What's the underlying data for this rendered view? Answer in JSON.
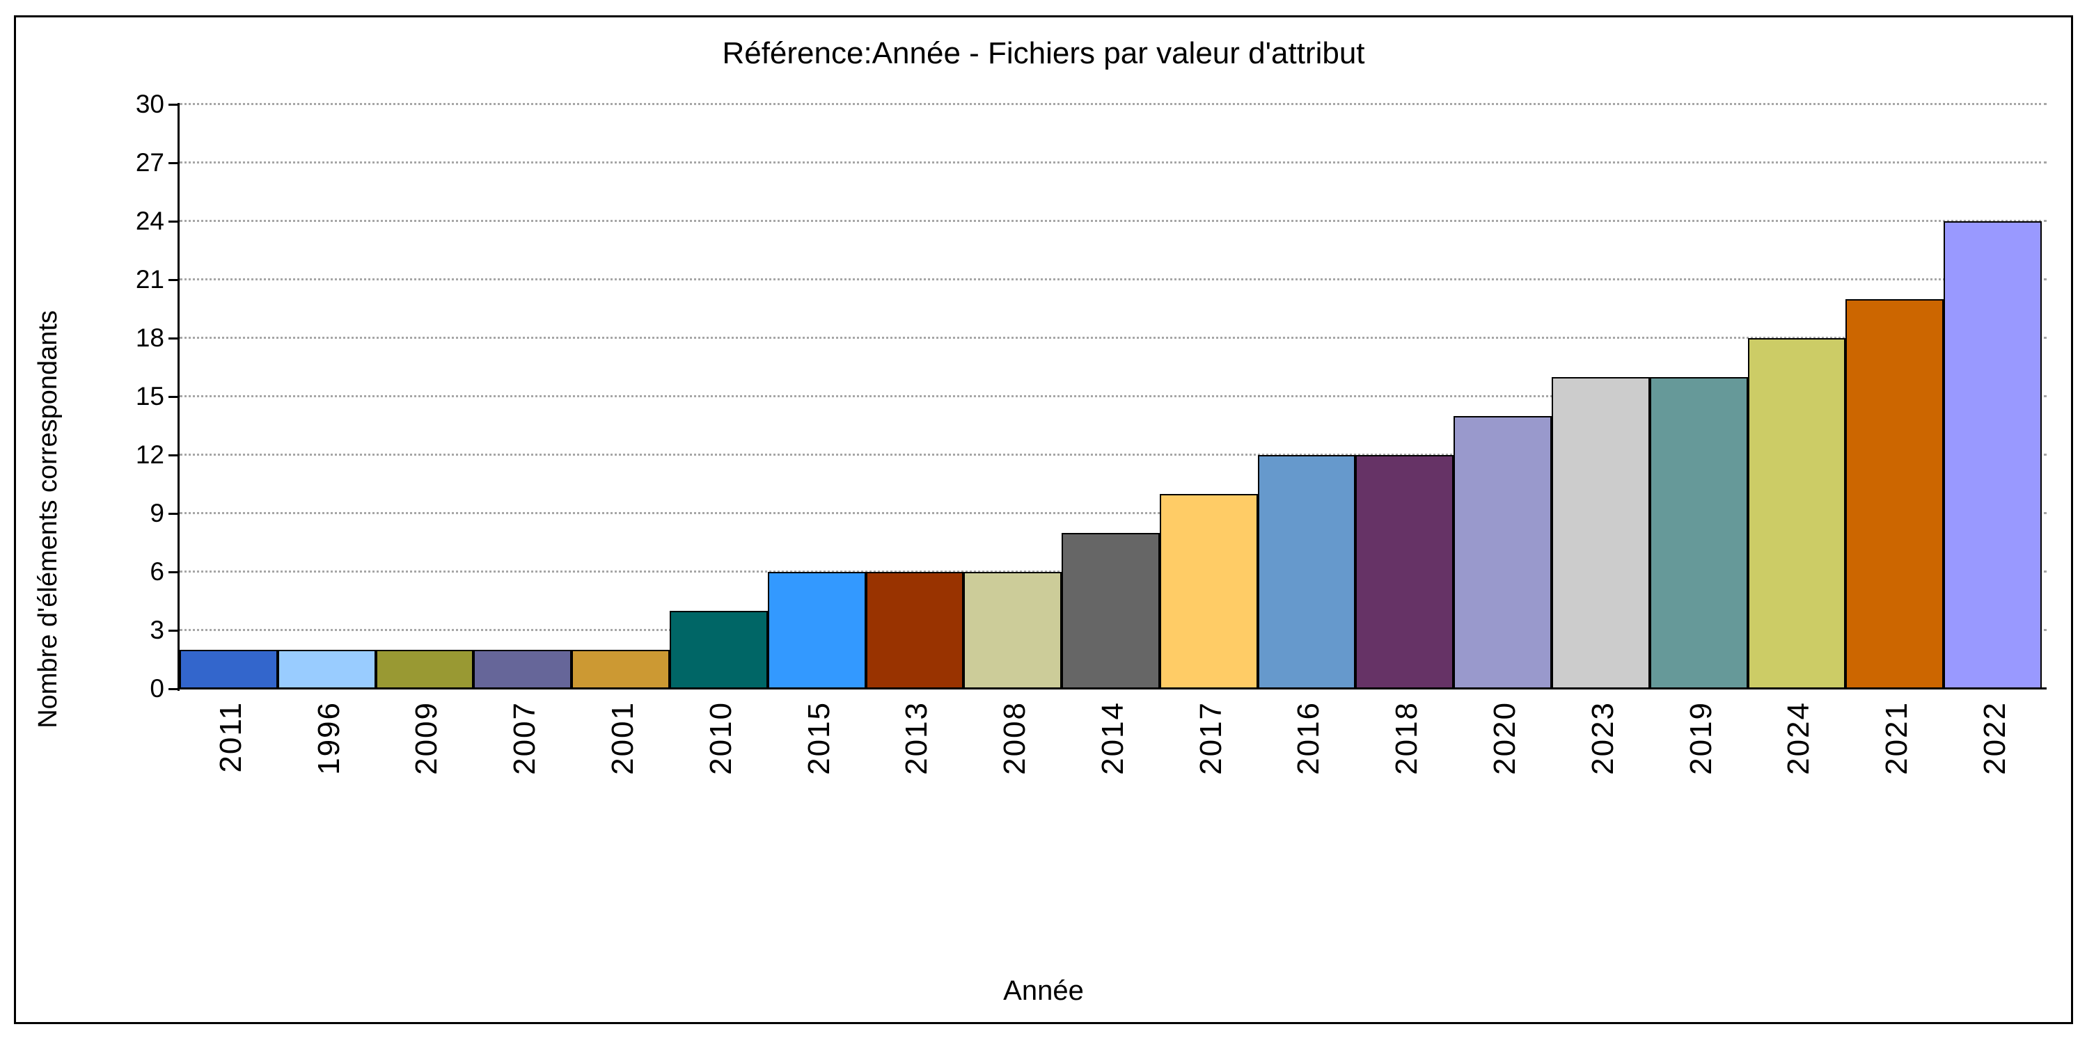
{
  "window": {
    "background": "#ffffff",
    "frame_border_color": "#000000"
  },
  "chart_data": {
    "type": "bar",
    "title": "Référence:Année - Fichiers par valeur d'attribut",
    "xlabel": "Année",
    "ylabel": "Nombre d'éléments correspondants",
    "categories": [
      "2011",
      "1996",
      "2009",
      "2007",
      "2001",
      "2010",
      "2015",
      "2013",
      "2008",
      "2014",
      "2017",
      "2016",
      "2018",
      "2020",
      "2023",
      "2019",
      "2024",
      "2021",
      "2022"
    ],
    "values": [
      2,
      2,
      2,
      2,
      2,
      4,
      6,
      6,
      6,
      8,
      10,
      12,
      12,
      14,
      16,
      16,
      18,
      20,
      24
    ],
    "bar_colors": [
      "#3366CC",
      "#99CCFF",
      "#999933",
      "#666699",
      "#CC9933",
      "#006666",
      "#3399FF",
      "#993300",
      "#CCCC99",
      "#666666",
      "#FFCC66",
      "#6699CC",
      "#663366",
      "#9999CC",
      "#CCCCCC",
      "#669999",
      "#CCCC66",
      "#CC6600",
      "#9999FF"
    ],
    "bar_edge_color": "#000000",
    "ylim": [
      0,
      30
    ],
    "yticks": [
      0,
      3,
      6,
      9,
      12,
      15,
      18,
      21,
      24,
      27,
      30
    ],
    "grid": "horizontal",
    "gridline_style": "dotted",
    "gridline_color": "#a6a6a6",
    "axis_color": "#000000",
    "legend": "none"
  }
}
